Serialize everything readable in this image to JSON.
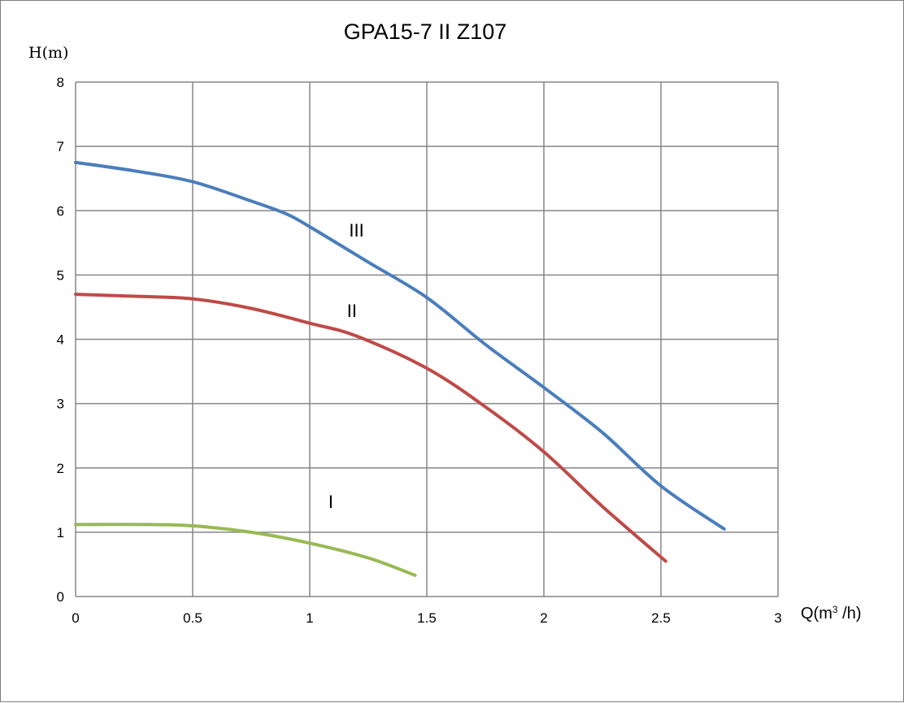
{
  "chart_data": {
    "type": "line",
    "title": "GPA15-7 II Z107",
    "ylabel": "H(m)",
    "xlabel": "Q(m³/h)",
    "xlabel_parts": {
      "pre": "Q(m",
      "sup": "3",
      "post": " /h)"
    },
    "xlim": [
      0,
      3
    ],
    "ylim": [
      0,
      8
    ],
    "grid": true,
    "legend": "none",
    "x_ticks": [
      {
        "value": 0,
        "label": "0"
      },
      {
        "value": 0.5,
        "label": "0.5"
      },
      {
        "value": 1,
        "label": "1"
      },
      {
        "value": 1.5,
        "label": "1.5"
      },
      {
        "value": 2,
        "label": "2"
      },
      {
        "value": 2.5,
        "label": "2.5"
      },
      {
        "value": 3,
        "label": "3"
      }
    ],
    "y_ticks": [
      {
        "value": 0,
        "label": "0"
      },
      {
        "value": 1,
        "label": "1"
      },
      {
        "value": 2,
        "label": "2"
      },
      {
        "value": 3,
        "label": "3"
      },
      {
        "value": 4,
        "label": "4"
      },
      {
        "value": 5,
        "label": "5"
      },
      {
        "value": 6,
        "label": "6"
      },
      {
        "value": 7,
        "label": "7"
      },
      {
        "value": 8,
        "label": "8"
      }
    ],
    "series": [
      {
        "name": "III",
        "color": "#4a7ebb",
        "label_at": {
          "x": 1.2,
          "y": 5.6
        },
        "points": [
          [
            0,
            6.75
          ],
          [
            0.25,
            6.62
          ],
          [
            0.5,
            6.45
          ],
          [
            0.75,
            6.15
          ],
          [
            0.9,
            5.95
          ],
          [
            1.0,
            5.75
          ],
          [
            1.25,
            5.2
          ],
          [
            1.5,
            4.65
          ],
          [
            1.75,
            3.92
          ],
          [
            2.0,
            3.25
          ],
          [
            2.25,
            2.55
          ],
          [
            2.5,
            1.72
          ],
          [
            2.77,
            1.05
          ]
        ]
      },
      {
        "name": "II",
        "color": "#be4b48",
        "label_at": {
          "x": 1.18,
          "y": 4.35
        },
        "points": [
          [
            0,
            4.7
          ],
          [
            0.25,
            4.67
          ],
          [
            0.5,
            4.63
          ],
          [
            0.75,
            4.48
          ],
          [
            1.0,
            4.25
          ],
          [
            1.2,
            4.05
          ],
          [
            1.5,
            3.55
          ],
          [
            1.75,
            2.95
          ],
          [
            2.0,
            2.25
          ],
          [
            2.25,
            1.4
          ],
          [
            2.52,
            0.55
          ]
        ]
      },
      {
        "name": "I",
        "color": "#98b954",
        "label_at": {
          "x": 1.09,
          "y": 1.38
        },
        "points": [
          [
            0,
            1.12
          ],
          [
            0.3,
            1.12
          ],
          [
            0.5,
            1.1
          ],
          [
            0.75,
            1.0
          ],
          [
            1.0,
            0.83
          ],
          [
            1.25,
            0.6
          ],
          [
            1.45,
            0.33
          ]
        ]
      }
    ]
  }
}
